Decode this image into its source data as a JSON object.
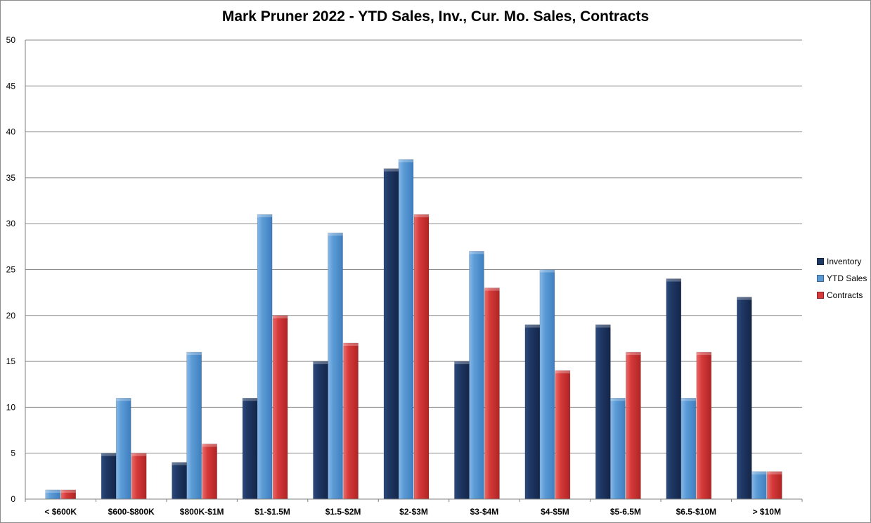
{
  "chart_data": {
    "type": "bar",
    "title": "Mark Pruner 2022 - YTD Sales, Inv., Cur. Mo. Sales, Contracts",
    "xlabel": "",
    "ylabel": "",
    "ylim": [
      0,
      50
    ],
    "yticks": [
      "0",
      "5",
      "10",
      "15",
      "20",
      "25",
      "30",
      "35",
      "40",
      "45",
      "50"
    ],
    "grid": true,
    "legend_position": "right",
    "categories": [
      "< $600K",
      "$600-$800K",
      "$800K-$1M",
      "$1-$1.5M",
      "$1.5-$2M",
      "$2-$3M",
      "$3-$4M",
      "$4-$5M",
      "$5-6.5M",
      "$6.5-$10M",
      "> $10M"
    ],
    "series": [
      {
        "name": "Inventory",
        "color": "#1f3864",
        "values": [
          0,
          5,
          4,
          11,
          15,
          36,
          15,
          19,
          19,
          24,
          22
        ]
      },
      {
        "name": "YTD Sales",
        "color": "#5b9bd5",
        "values": [
          1,
          11,
          16,
          31,
          29,
          37,
          27,
          25,
          11,
          11,
          3
        ]
      },
      {
        "name": "Contracts",
        "color": "#d63a3a",
        "values": [
          1,
          5,
          6,
          20,
          17,
          31,
          23,
          14,
          16,
          16,
          3
        ]
      }
    ]
  }
}
